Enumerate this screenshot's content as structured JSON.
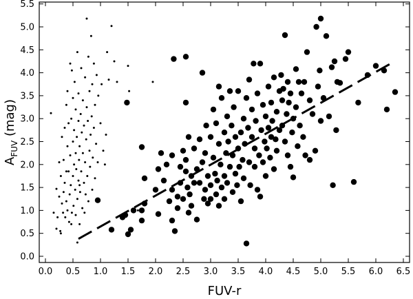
{
  "chart_data": {
    "type": "scatter",
    "title": "",
    "xlabel": "FUV-r",
    "ylabel": {
      "base": "A",
      "sub": "FUV",
      "rest": " (mag)"
    },
    "xlim": [
      0.0,
      6.6
    ],
    "ylim": [
      -0.05,
      5.5
    ],
    "xticks": [
      0.0,
      0.5,
      1.0,
      1.5,
      2.0,
      2.5,
      3.0,
      3.5,
      4.0,
      4.5,
      5.0,
      5.5,
      6.0,
      6.5
    ],
    "yticks": [
      0.0,
      0.5,
      1.0,
      1.5,
      2.0,
      2.5,
      3.0,
      3.5,
      4.0,
      4.5,
      5.0,
      5.5
    ],
    "xtick_labels": [
      "0.0",
      "0.5",
      "1.0",
      "1.5",
      "2.0",
      "2.5",
      "3.0",
      "3.5",
      "4.0",
      "4.5",
      "5.0",
      "5.5",
      "6.0",
      "6.5"
    ],
    "ytick_labels": [
      "0.0",
      "0.5",
      "1.0",
      "1.5",
      "2.0",
      "2.5",
      "3.0",
      "3.5",
      "4.0",
      "4.5",
      "5.0",
      "5.5"
    ],
    "grid": false,
    "legend": "none",
    "series": [
      {
        "marker": "small-dot",
        "points": [
          [
            0.1,
            3.12
          ],
          [
            0.15,
            0.95
          ],
          [
            0.2,
            1.47
          ],
          [
            0.2,
            0.6
          ],
          [
            0.22,
            0.85
          ],
          [
            0.25,
            1.3
          ],
          [
            0.25,
            2.05
          ],
          [
            0.27,
            0.55
          ],
          [
            0.28,
            1.75
          ],
          [
            0.3,
            2.6
          ],
          [
            0.3,
            1.15
          ],
          [
            0.32,
            0.95
          ],
          [
            0.33,
            1.4
          ],
          [
            0.33,
            2.1
          ],
          [
            0.35,
            2.8
          ],
          [
            0.35,
            1.6
          ],
          [
            0.36,
            0.85
          ],
          [
            0.38,
            3.3
          ],
          [
            0.38,
            1.2
          ],
          [
            0.4,
            2.4
          ],
          [
            0.4,
            1.0
          ],
          [
            0.4,
            3.6
          ],
          [
            0.42,
            1.85
          ],
          [
            0.42,
            2.9
          ],
          [
            0.43,
            0.75
          ],
          [
            0.44,
            1.35
          ],
          [
            0.45,
            4.2
          ],
          [
            0.45,
            2.2
          ],
          [
            0.46,
            1.55
          ],
          [
            0.47,
            3.0
          ],
          [
            0.48,
            4.05
          ],
          [
            0.48,
            0.95
          ],
          [
            0.5,
            2.5
          ],
          [
            0.5,
            1.75
          ],
          [
            0.5,
            3.45
          ],
          [
            0.51,
            1.1
          ],
          [
            0.52,
            2.0
          ],
          [
            0.52,
            2.75
          ],
          [
            0.53,
            3.8
          ],
          [
            0.54,
            1.45
          ],
          [
            0.55,
            2.25
          ],
          [
            0.55,
            0.9
          ],
          [
            0.55,
            3.2
          ],
          [
            0.56,
            1.9
          ],
          [
            0.57,
            2.6
          ],
          [
            0.58,
            4.45
          ],
          [
            0.58,
            1.25
          ],
          [
            0.6,
            1.65
          ],
          [
            0.6,
            2.95
          ],
          [
            0.6,
            3.55
          ],
          [
            0.61,
            2.1
          ],
          [
            0.62,
            0.7
          ],
          [
            0.62,
            2.4
          ],
          [
            0.63,
            1.4
          ],
          [
            0.64,
            3.1
          ],
          [
            0.65,
            1.85
          ],
          [
            0.65,
            4.1
          ],
          [
            0.66,
            2.7
          ],
          [
            0.67,
            1.05
          ],
          [
            0.68,
            2.25
          ],
          [
            0.68,
            3.4
          ],
          [
            0.7,
            1.6
          ],
          [
            0.7,
            2.85
          ],
          [
            0.71,
            0.95
          ],
          [
            0.72,
            3.9
          ],
          [
            0.72,
            2.05
          ],
          [
            0.73,
            1.35
          ],
          [
            0.74,
            2.55
          ],
          [
            0.75,
            3.25
          ],
          [
            0.75,
            5.18
          ],
          [
            0.76,
            1.75
          ],
          [
            0.77,
            2.95
          ],
          [
            0.78,
            4.35
          ],
          [
            0.78,
            1.2
          ],
          [
            0.8,
            2.3
          ],
          [
            0.8,
            3.6
          ],
          [
            0.81,
            1.95
          ],
          [
            0.82,
            2.65
          ],
          [
            0.83,
            4.8
          ],
          [
            0.84,
            3.05
          ],
          [
            0.85,
            1.45
          ],
          [
            0.85,
            3.75
          ],
          [
            0.86,
            2.15
          ],
          [
            0.88,
            4.2
          ],
          [
            0.88,
            2.8
          ],
          [
            0.9,
            1.7
          ],
          [
            0.9,
            3.3
          ],
          [
            0.92,
            2.45
          ],
          [
            0.93,
            3.95
          ],
          [
            0.95,
            2.05
          ],
          [
            0.96,
            3.5
          ],
          [
            1.0,
            2.9
          ],
          [
            1.02,
            3.75
          ],
          [
            1.05,
            2.3
          ],
          [
            1.08,
            2.0
          ],
          [
            1.1,
            2.65
          ],
          [
            1.12,
            4.45
          ],
          [
            1.15,
            3.85
          ],
          [
            1.2,
            5.02
          ],
          [
            1.25,
            4.25
          ],
          [
            1.3,
            3.8
          ],
          [
            1.5,
            4.15
          ],
          [
            1.52,
            3.6
          ],
          [
            1.68,
            1.0
          ],
          [
            1.95,
            3.8
          ],
          [
            0.58,
            0.3
          ],
          [
            0.28,
            0.5
          ],
          [
            0.38,
            1.85
          ],
          [
            0.47,
            0.7
          ],
          [
            0.62,
            1.55
          ]
        ]
      },
      {
        "marker": "large-dot",
        "points": [
          [
            0.95,
            1.22
          ],
          [
            1.2,
            0.58
          ],
          [
            1.4,
            0.85
          ],
          [
            1.45,
            0.9
          ],
          [
            1.48,
            3.35
          ],
          [
            1.5,
            0.48
          ],
          [
            1.55,
            0.58
          ],
          [
            1.6,
            1.0
          ],
          [
            1.75,
            1.0
          ],
          [
            1.75,
            0.78
          ],
          [
            1.75,
            2.38
          ],
          [
            1.8,
            1.15
          ],
          [
            1.8,
            1.7
          ],
          [
            2.0,
            1.45
          ],
          [
            2.05,
            0.92
          ],
          [
            2.05,
            1.9
          ],
          [
            2.1,
            2.25
          ],
          [
            2.15,
            1.65
          ],
          [
            2.2,
            2.0
          ],
          [
            2.25,
            1.2
          ],
          [
            2.3,
            2.2
          ],
          [
            2.3,
            1.45
          ],
          [
            2.3,
            0.78
          ],
          [
            2.33,
            4.3
          ],
          [
            2.35,
            0.55
          ],
          [
            2.4,
            1.05
          ],
          [
            2.4,
            1.3
          ],
          [
            2.45,
            1.95
          ],
          [
            2.45,
            1.6
          ],
          [
            2.5,
            2.3
          ],
          [
            2.5,
            1.25
          ],
          [
            2.55,
            4.35
          ],
          [
            2.55,
            3.35
          ],
          [
            2.55,
            2.1
          ],
          [
            2.55,
            1.85
          ],
          [
            2.58,
            1.5
          ],
          [
            2.6,
            0.95
          ],
          [
            2.6,
            2.6
          ],
          [
            2.62,
            1.35
          ],
          [
            2.65,
            1.75
          ],
          [
            2.65,
            1.1
          ],
          [
            2.7,
            2.35
          ],
          [
            2.7,
            1.6
          ],
          [
            2.75,
            1.9
          ],
          [
            2.75,
            0.8
          ],
          [
            2.8,
            2.55
          ],
          [
            2.8,
            1.6
          ],
          [
            2.85,
            2.05
          ],
          [
            2.85,
            4.0
          ],
          [
            2.88,
            1.25
          ],
          [
            2.9,
            2.25
          ],
          [
            2.9,
            1.45
          ],
          [
            2.92,
            2.85
          ],
          [
            2.95,
            1.75
          ],
          [
            2.95,
            1.15
          ],
          [
            3.0,
            2.6
          ],
          [
            3.0,
            1.55
          ],
          [
            3.0,
            1.25
          ],
          [
            3.05,
            2.15
          ],
          [
            3.05,
            3.2
          ],
          [
            3.08,
            1.8
          ],
          [
            3.1,
            1.35
          ],
          [
            3.1,
            2.9
          ],
          [
            3.12,
            1.65
          ],
          [
            3.15,
            3.7
          ],
          [
            3.15,
            2.45
          ],
          [
            3.15,
            1.1
          ],
          [
            3.18,
            2.0
          ],
          [
            3.2,
            1.5
          ],
          [
            3.2,
            3.45
          ],
          [
            3.25,
            2.7
          ],
          [
            3.25,
            1.75
          ],
          [
            3.25,
            1.25
          ],
          [
            3.28,
            2.25
          ],
          [
            3.3,
            3.05
          ],
          [
            3.3,
            1.6
          ],
          [
            3.32,
            2.5
          ],
          [
            3.35,
            1.95
          ],
          [
            3.35,
            3.6
          ],
          [
            3.38,
            2.85
          ],
          [
            3.4,
            1.4
          ],
          [
            3.4,
            2.2
          ],
          [
            3.42,
            3.25
          ],
          [
            3.45,
            1.8
          ],
          [
            3.45,
            2.6
          ],
          [
            3.48,
            1.55
          ],
          [
            3.5,
            2.35
          ],
          [
            3.5,
            3.6
          ],
          [
            3.52,
            1.95
          ],
          [
            3.55,
            2.7
          ],
          [
            3.55,
            1.2
          ],
          [
            3.58,
            2.1
          ],
          [
            3.6,
            3.0
          ],
          [
            3.6,
            1.7
          ],
          [
            3.62,
            2.45
          ],
          [
            3.65,
            3.45
          ],
          [
            3.65,
            0.28
          ],
          [
            3.68,
            2.8
          ],
          [
            3.7,
            2.05
          ],
          [
            3.7,
            3.85
          ],
          [
            3.72,
            1.55
          ],
          [
            3.75,
            2.6
          ],
          [
            3.75,
            3.2
          ],
          [
            3.78,
            4.2
          ],
          [
            3.8,
            1.95
          ],
          [
            3.8,
            2.35
          ],
          [
            3.82,
            2.95
          ],
          [
            3.85,
            3.55
          ],
          [
            3.85,
            1.45
          ],
          [
            3.88,
            2.2
          ],
          [
            3.9,
            4.2
          ],
          [
            3.9,
            1.3
          ],
          [
            3.92,
            2.75
          ],
          [
            3.95,
            2.05
          ],
          [
            3.95,
            3.3
          ],
          [
            3.98,
            2.5
          ],
          [
            4.0,
            1.75
          ],
          [
            4.0,
            3.05
          ],
          [
            4.02,
            2.35
          ],
          [
            4.05,
            2.8
          ],
          [
            4.05,
            3.7
          ],
          [
            4.08,
            2.15
          ],
          [
            4.1,
            2.6
          ],
          [
            4.1,
            3.35
          ],
          [
            4.12,
            2.95
          ],
          [
            4.15,
            3.9
          ],
          [
            4.15,
            1.9
          ],
          [
            4.18,
            2.55
          ],
          [
            4.2,
            3.15
          ],
          [
            4.2,
            2.3
          ],
          [
            4.25,
            3.6
          ],
          [
            4.25,
            2.75
          ],
          [
            4.28,
            3.95
          ],
          [
            4.3,
            3.4
          ],
          [
            4.3,
            2.85
          ],
          [
            4.32,
            3.65
          ],
          [
            4.35,
            4.82
          ],
          [
            4.35,
            2.5
          ],
          [
            4.38,
            3.1
          ],
          [
            4.4,
            3.8
          ],
          [
            4.4,
            2.2
          ],
          [
            4.42,
            3.35
          ],
          [
            4.45,
            1.95
          ],
          [
            4.45,
            3.55
          ],
          [
            4.48,
            2.7
          ],
          [
            4.5,
            3.0
          ],
          [
            4.5,
            1.72
          ],
          [
            4.55,
            4.08
          ],
          [
            4.55,
            3.25
          ],
          [
            4.58,
            2.4
          ],
          [
            4.6,
            3.8
          ],
          [
            4.62,
            2.85
          ],
          [
            4.65,
            3.55
          ],
          [
            4.68,
            2.6
          ],
          [
            4.7,
            3.8
          ],
          [
            4.72,
            2.2
          ],
          [
            4.75,
            4.45
          ],
          [
            4.8,
            3.4
          ],
          [
            4.8,
            2.1
          ],
          [
            4.85,
            3.1
          ],
          [
            4.9,
            2.3
          ],
          [
            4.92,
            5.0
          ],
          [
            4.95,
            3.7
          ],
          [
            4.98,
            4.05
          ],
          [
            5.0,
            5.18
          ],
          [
            5.0,
            2.95
          ],
          [
            5.05,
            3.45
          ],
          [
            5.1,
            4.8
          ],
          [
            5.15,
            3.05
          ],
          [
            5.2,
            4.12
          ],
          [
            5.22,
            1.55
          ],
          [
            5.25,
            4.25
          ],
          [
            5.28,
            2.75
          ],
          [
            5.3,
            3.8
          ],
          [
            5.35,
            3.78
          ],
          [
            5.45,
            4.3
          ],
          [
            5.5,
            4.45
          ],
          [
            5.6,
            1.62
          ],
          [
            5.68,
            3.35
          ],
          [
            5.85,
            3.95
          ],
          [
            6.0,
            4.15
          ],
          [
            6.15,
            4.05
          ],
          [
            6.2,
            3.2
          ],
          [
            6.35,
            3.58
          ]
        ]
      }
    ],
    "fit_line": {
      "style": "dashed",
      "x": [
        0.6,
        6.3
      ],
      "y": [
        0.38,
        4.22
      ]
    }
  }
}
